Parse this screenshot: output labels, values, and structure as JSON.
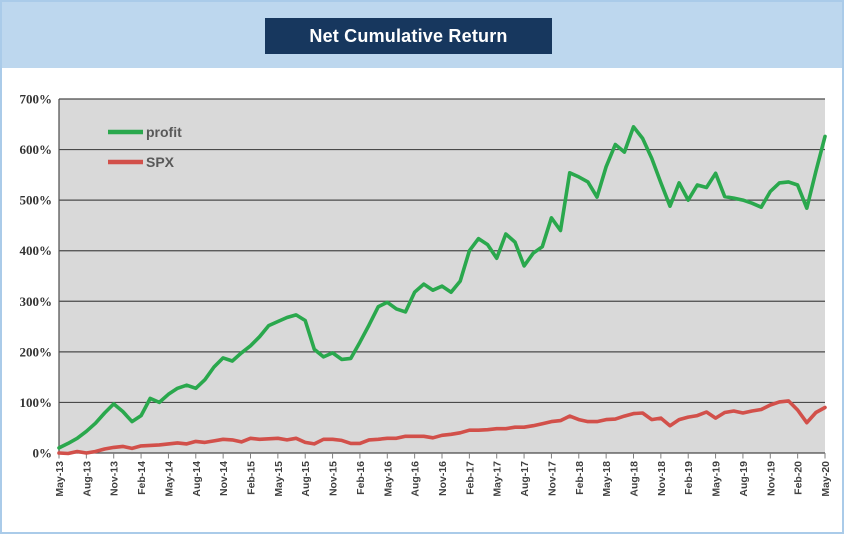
{
  "header": {
    "title": "Net Cumulative Return",
    "band_color": "#BDD7EE",
    "title_box_color": "#17375E",
    "title_text_color": "#FFFFFF"
  },
  "chart_data": {
    "type": "line",
    "title": "Net Cumulative Return",
    "xlabel": "",
    "ylabel": "",
    "ylim": [
      0,
      700
    ],
    "y_tick_step": 100,
    "y_tick_labels": [
      "0%",
      "100%",
      "200%",
      "300%",
      "400%",
      "500%",
      "600%",
      "700%"
    ],
    "grid": true,
    "plot_bg": "#D9D9D9",
    "grid_color": "#4A4A4A",
    "tick_color": "#7F7F7F",
    "legend_position": "top-left",
    "x_tick_labels": [
      "May-13",
      "Aug-13",
      "Nov-13",
      "Feb-14",
      "May-14",
      "Aug-14",
      "Nov-14",
      "Feb-15",
      "May-15",
      "Aug-15",
      "Nov-15",
      "Feb-16",
      "May-16",
      "Aug-16",
      "Nov-16",
      "Feb-17",
      "May-17",
      "Aug-17",
      "Nov-17",
      "Feb-18",
      "May-18",
      "Aug-18",
      "Nov-18",
      "Feb-19",
      "May-19",
      "Aug-19",
      "Nov-19",
      "Feb-20",
      "May-20"
    ],
    "x_months_per_tick": 3,
    "series": [
      {
        "name": "profit",
        "color": "#2AA84D",
        "values": [
          10,
          19,
          29,
          43,
          59,
          79,
          97,
          82,
          62,
          74,
          108,
          100,
          116,
          128,
          134,
          128,
          145,
          170,
          188,
          182,
          198,
          212,
          230,
          252,
          260,
          268,
          273,
          262,
          205,
          190,
          198,
          185,
          187,
          219,
          253,
          289,
          298,
          285,
          279,
          318,
          334,
          322,
          330,
          318,
          340,
          400,
          424,
          412,
          385,
          433,
          417,
          370,
          395,
          408,
          465,
          440,
          554,
          546,
          536,
          506,
          566,
          610,
          595,
          645,
          622,
          583,
          534,
          488,
          534,
          500,
          530,
          525,
          553,
          507,
          504,
          500,
          494,
          486,
          517,
          534,
          536,
          530,
          484,
          557,
          626
        ]
      },
      {
        "name": "SPX",
        "color": "#D2504A",
        "values": [
          0,
          -1,
          3,
          0,
          3,
          8,
          11,
          13,
          9,
          14,
          15,
          16,
          18,
          20,
          18,
          23,
          21,
          24,
          27,
          26,
          22,
          29,
          27,
          28,
          29,
          26,
          29,
          21,
          18,
          27,
          27,
          25,
          19,
          19,
          26,
          27,
          29,
          29,
          33,
          33,
          33,
          30,
          35,
          37,
          40,
          45,
          45,
          46,
          48,
          48,
          51,
          51,
          54,
          58,
          62,
          64,
          73,
          66,
          62,
          62,
          66,
          67,
          73,
          78,
          79,
          66,
          69,
          54,
          66,
          71,
          74,
          81,
          69,
          80,
          83,
          79,
          83,
          86,
          95,
          101,
          103,
          85,
          60,
          80,
          90
        ]
      }
    ]
  }
}
